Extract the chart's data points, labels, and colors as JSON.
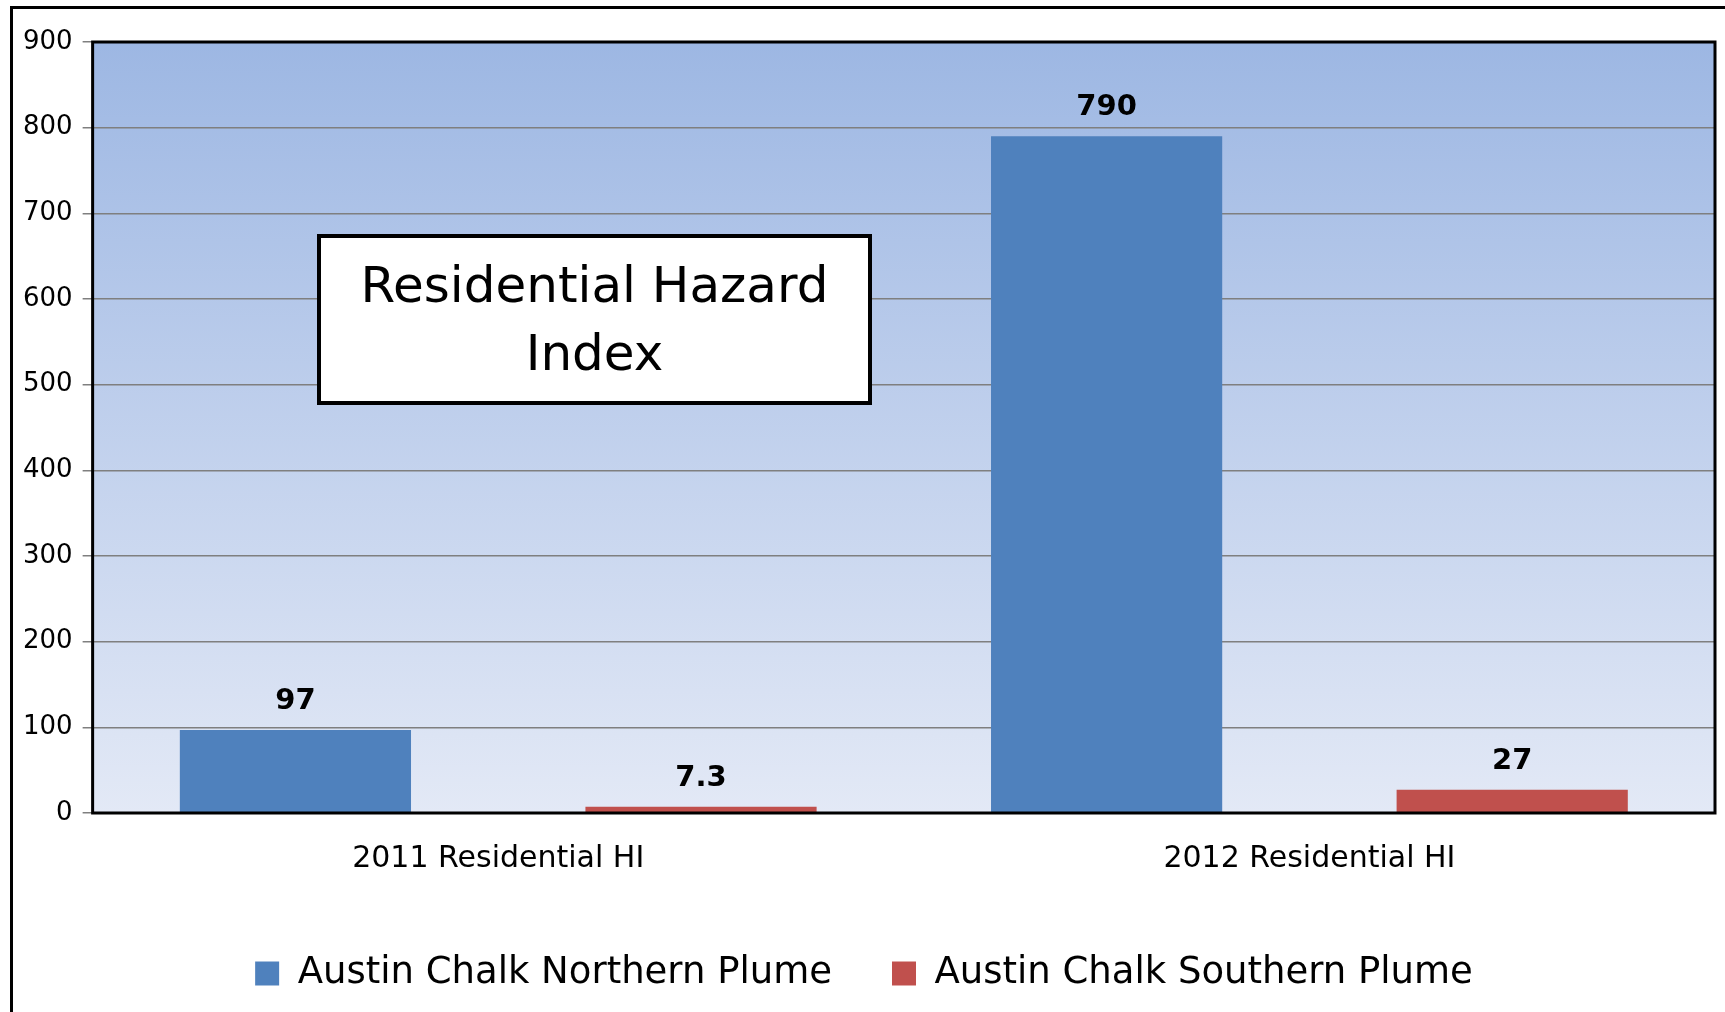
{
  "chart_data": {
    "type": "bar",
    "title": "Residential Hazard Index",
    "categories": [
      "2011 Residential HI",
      "2012 Residential HI"
    ],
    "series": [
      {
        "name": "Austin Chalk Northern Plume",
        "color": "#4f81bd",
        "values": [
          97,
          790
        ]
      },
      {
        "name": "Austin Chalk Southern Plume",
        "color": "#c0504d",
        "values": [
          7.3,
          27
        ]
      }
    ],
    "ylim": [
      0,
      900
    ],
    "yticks": [
      0,
      100,
      200,
      300,
      400,
      500,
      600,
      700,
      800,
      900
    ],
    "grid": "y",
    "legend": "bottom",
    "data_labels": true
  }
}
